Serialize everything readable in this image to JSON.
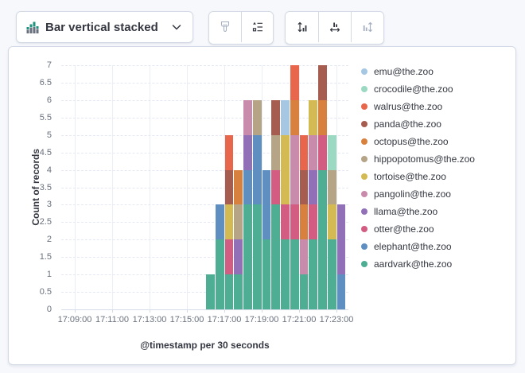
{
  "toolbar": {
    "chart_type": {
      "label": "Bar vertical stacked"
    },
    "buttons": {
      "brush": {
        "disabled": true
      },
      "legend_options": {
        "disabled": false
      },
      "axis_left": {
        "disabled": false
      },
      "axis_bottom": {
        "disabled": false
      },
      "axis_right": {
        "disabled": true
      }
    }
  },
  "chart_data": {
    "type": "bar",
    "stacked": true,
    "orientation": "vertical",
    "title": "",
    "xlabel": "@timestamp per 30 seconds",
    "ylabel": "Count of records",
    "ylim": [
      0,
      7
    ],
    "y_tick_step": 0.5,
    "grid": true,
    "legend_position": "right",
    "x_axis_ticks": [
      "17:09:00",
      "17:11:00",
      "17:13:00",
      "17:15:00",
      "17:17:00",
      "17:19:00",
      "17:21:00",
      "17:23:00"
    ],
    "categories": [
      "17:16:00",
      "17:16:30",
      "17:17:00",
      "17:17:30",
      "17:18:00",
      "17:18:30",
      "17:19:00",
      "17:19:30",
      "17:20:00",
      "17:20:30",
      "17:21:00",
      "17:21:30",
      "17:22:00",
      "17:22:30",
      "17:23:00"
    ],
    "series": [
      {
        "name": "emu@the.zoo",
        "color": "#A6C7E2",
        "values": [
          0,
          0,
          0,
          0,
          0,
          0,
          0,
          0,
          1,
          0,
          0,
          0,
          0,
          0,
          0
        ]
      },
      {
        "name": "crocodile@the.zoo",
        "color": "#9BD9C3",
        "values": [
          0,
          0,
          0,
          0,
          0,
          0,
          0,
          0,
          0,
          0,
          0,
          0,
          0,
          1,
          0
        ]
      },
      {
        "name": "walrus@the.zoo",
        "color": "#E7664C",
        "values": [
          0,
          0,
          1,
          0,
          0,
          0,
          0,
          0,
          0,
          1,
          1,
          0,
          0,
          0,
          0
        ]
      },
      {
        "name": "panda@the.zoo",
        "color": "#A65D50",
        "values": [
          0,
          0,
          1,
          0,
          0,
          0,
          0,
          1,
          0,
          0,
          1,
          0,
          1,
          0,
          0
        ]
      },
      {
        "name": "octopus@the.zoo",
        "color": "#D8813F",
        "values": [
          0,
          0,
          0,
          1,
          0,
          0,
          0,
          0,
          0,
          1,
          1,
          0,
          1,
          0,
          0
        ]
      },
      {
        "name": "hippopotomus@the.zoo",
        "color": "#B5A485",
        "values": [
          0,
          0,
          0,
          1,
          0,
          1,
          0,
          1,
          0,
          0,
          0,
          0,
          0,
          1,
          0
        ]
      },
      {
        "name": "tortoise@the.zoo",
        "color": "#D3BA53",
        "values": [
          0,
          0,
          1,
          0,
          0,
          0,
          0,
          0,
          2,
          0,
          0,
          1,
          0,
          1,
          0
        ]
      },
      {
        "name": "pangolin@the.zoo",
        "color": "#C98BAC",
        "values": [
          0,
          0,
          0,
          0,
          1,
          0,
          0,
          0,
          0,
          2,
          1,
          1,
          0,
          0,
          0
        ]
      },
      {
        "name": "llama@the.zoo",
        "color": "#9170B8",
        "values": [
          0,
          0,
          0,
          1,
          1,
          0,
          0,
          0,
          0,
          0,
          0,
          1,
          0,
          0,
          2
        ]
      },
      {
        "name": "otter@the.zoo",
        "color": "#D35C82",
        "values": [
          0,
          0,
          1,
          0,
          0,
          0,
          0,
          1,
          1,
          1,
          0,
          1,
          1,
          0,
          0
        ]
      },
      {
        "name": "elephant@the.zoo",
        "color": "#5E8FC0",
        "values": [
          0,
          1,
          0,
          0,
          1,
          2,
          2,
          0,
          0,
          0,
          0,
          0,
          0,
          0,
          1
        ]
      },
      {
        "name": "aardvark@the.zoo",
        "color": "#4DAE93",
        "values": [
          1,
          2,
          1,
          1,
          3,
          3,
          2,
          3,
          2,
          2,
          1,
          2,
          4,
          2,
          0
        ]
      }
    ]
  }
}
